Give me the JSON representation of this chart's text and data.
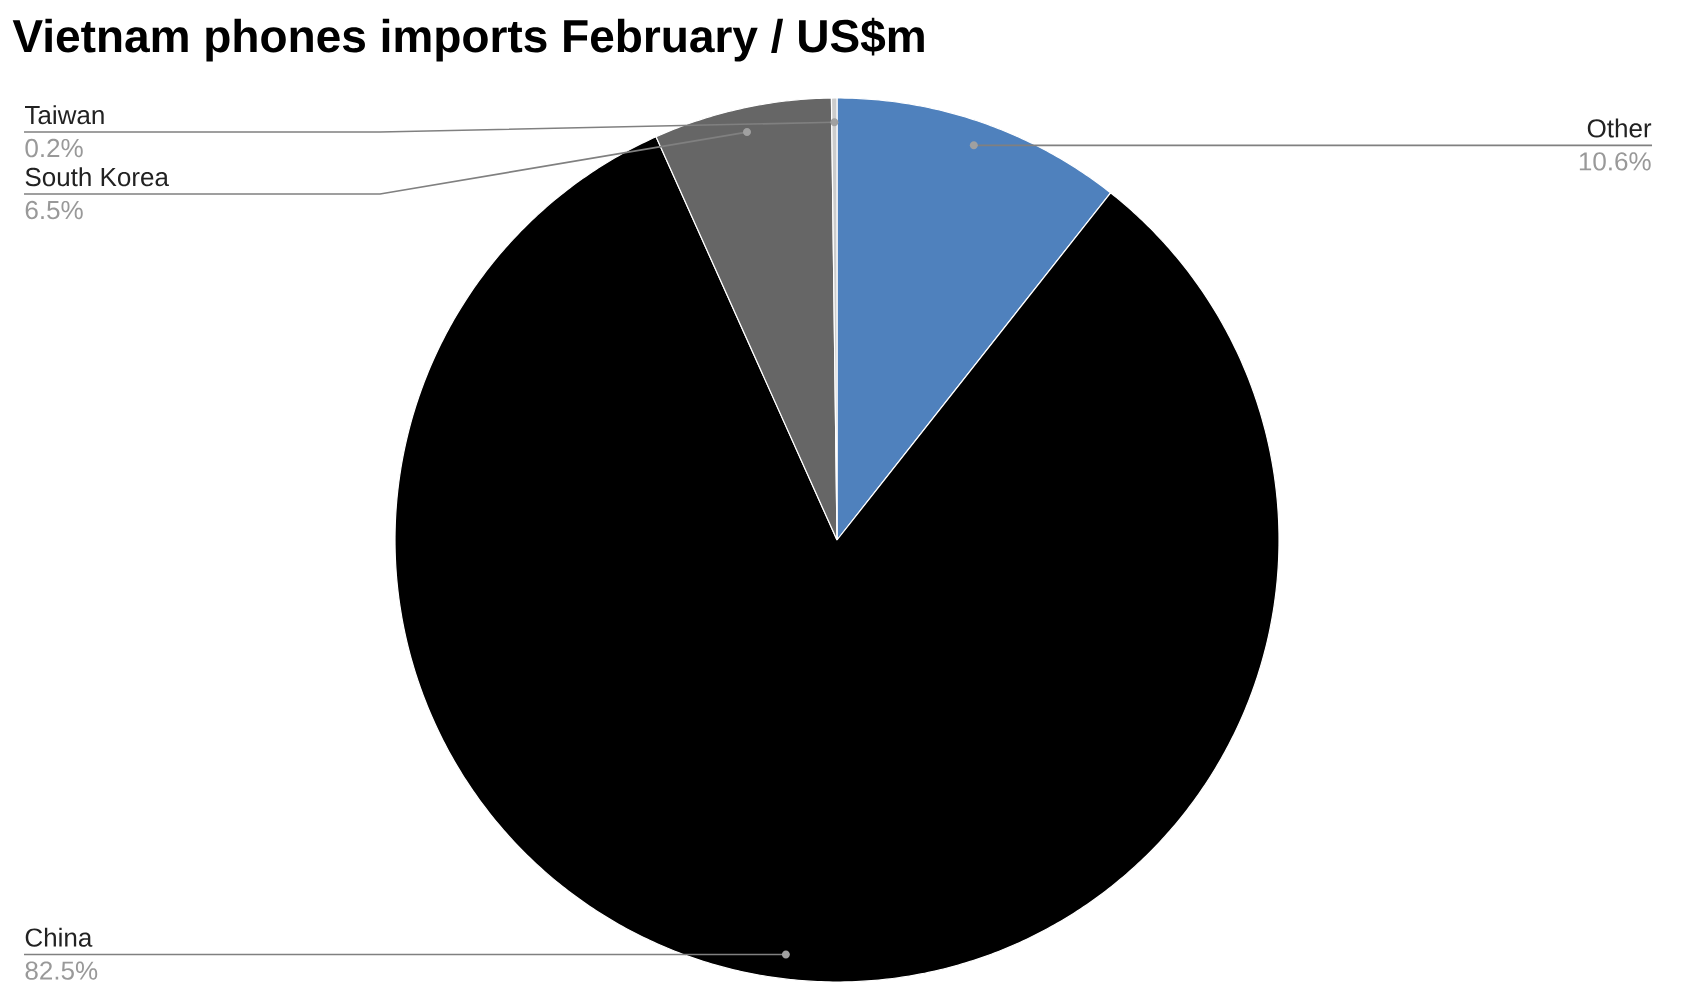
{
  "chart_data": {
    "type": "pie",
    "title": "Vietnam phones imports February / US$m",
    "categories": [
      "Other",
      "China",
      "South Korea",
      "Taiwan"
    ],
    "values": [
      10.6,
      82.5,
      6.5,
      0.2
    ],
    "colors": [
      "#4f81bd",
      "#000000",
      "#666666",
      "#cccccc"
    ],
    "value_labels": [
      "10.6%",
      "82.5%",
      "6.5%",
      "0.2%"
    ]
  }
}
